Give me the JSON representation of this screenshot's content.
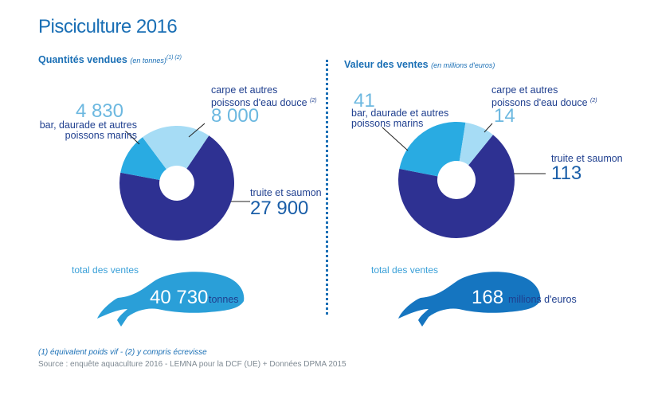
{
  "title": "Pisciculture 2016",
  "colors": {
    "truite": "#2e3192",
    "bar": "#29abe2",
    "carpe": "#a6dcf5",
    "fish_left": "#2a9fd8",
    "fish_right": "#1575c0",
    "accent": "#1a6fb5"
  },
  "chart_data": [
    {
      "type": "pie",
      "variant": "donut",
      "title": "Quantités vendues",
      "unit_note": "(en tonnes)",
      "footnote_refs": "(1) (2)",
      "slices": [
        {
          "label": "truite et saumon",
          "value": 27900,
          "display": "27 900"
        },
        {
          "label": "bar, daurade et autres poissons marins",
          "value": 4830,
          "display": "4 830"
        },
        {
          "label": "carpe et autres poissons d'eau douce",
          "label_ref": "(2)",
          "value": 8000,
          "display": "8 000"
        }
      ],
      "total": {
        "label": "total des ventes",
        "value": 40730,
        "display": "40 730",
        "unit": "tonnes"
      }
    },
    {
      "type": "pie",
      "variant": "donut",
      "title": "Valeur des ventes",
      "unit_note": "(en millions d'euros)",
      "slices": [
        {
          "label": "truite et saumon",
          "value": 113,
          "display": "113"
        },
        {
          "label": "bar, daurade et autres poissons marins",
          "value": 41,
          "display": "41"
        },
        {
          "label": "carpe et autres poissons d'eau douce",
          "label_ref": "(2)",
          "value": 14,
          "display": "14"
        }
      ],
      "total": {
        "label": "total des ventes",
        "value": 168,
        "display": "168",
        "unit": "millions d'euros"
      }
    }
  ],
  "labels": {
    "bar_line1": "bar, daurade et autres",
    "bar_line2": "poissons marins",
    "carpe_line1": "carpe et autres",
    "carpe_line2": "poissons d'eau douce",
    "carpe_ref": "(2)",
    "truite": "truite et saumon"
  },
  "footnotes": {
    "notes": "(1) équivalent poids vif  - (2)  y compris écrevisse",
    "source": "Source : enquête aquaculture 2016 - LEMNA pour la DCF (UE) + Données DPMA 2015"
  }
}
